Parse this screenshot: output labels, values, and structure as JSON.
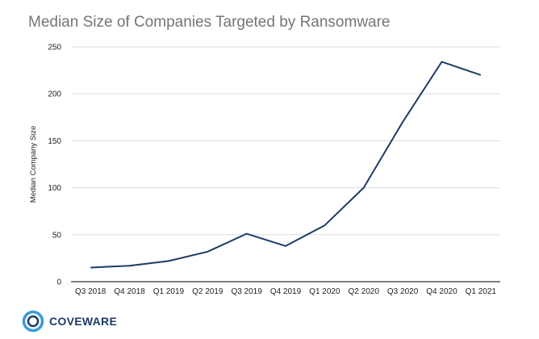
{
  "chart_data": {
    "type": "line",
    "title": "Median Size of Companies Targeted by Ransomware",
    "xlabel": "",
    "ylabel": "Median Company Size",
    "categories": [
      "Q3 2018",
      "Q4 2018",
      "Q1 2019",
      "Q2 2019",
      "Q3 2019",
      "Q4 2019",
      "Q1 2020",
      "Q2 2020",
      "Q3 2020",
      "Q4 2020",
      "Q1 2021"
    ],
    "series": [
      {
        "values": [
          15,
          17,
          22,
          32,
          51,
          38,
          60,
          100,
          170,
          234,
          220
        ]
      }
    ],
    "ylim": [
      0,
      250
    ],
    "yticks": [
      0,
      50,
      100,
      150,
      200,
      250
    ],
    "grid": true,
    "legend": "none",
    "line_color": "#1f3a68",
    "grid_color": "#dddddd"
  },
  "branding": {
    "logo_text": "COVEWARE",
    "logo_color": "#1f3a68",
    "logo_accent": "#3a9bd9"
  }
}
